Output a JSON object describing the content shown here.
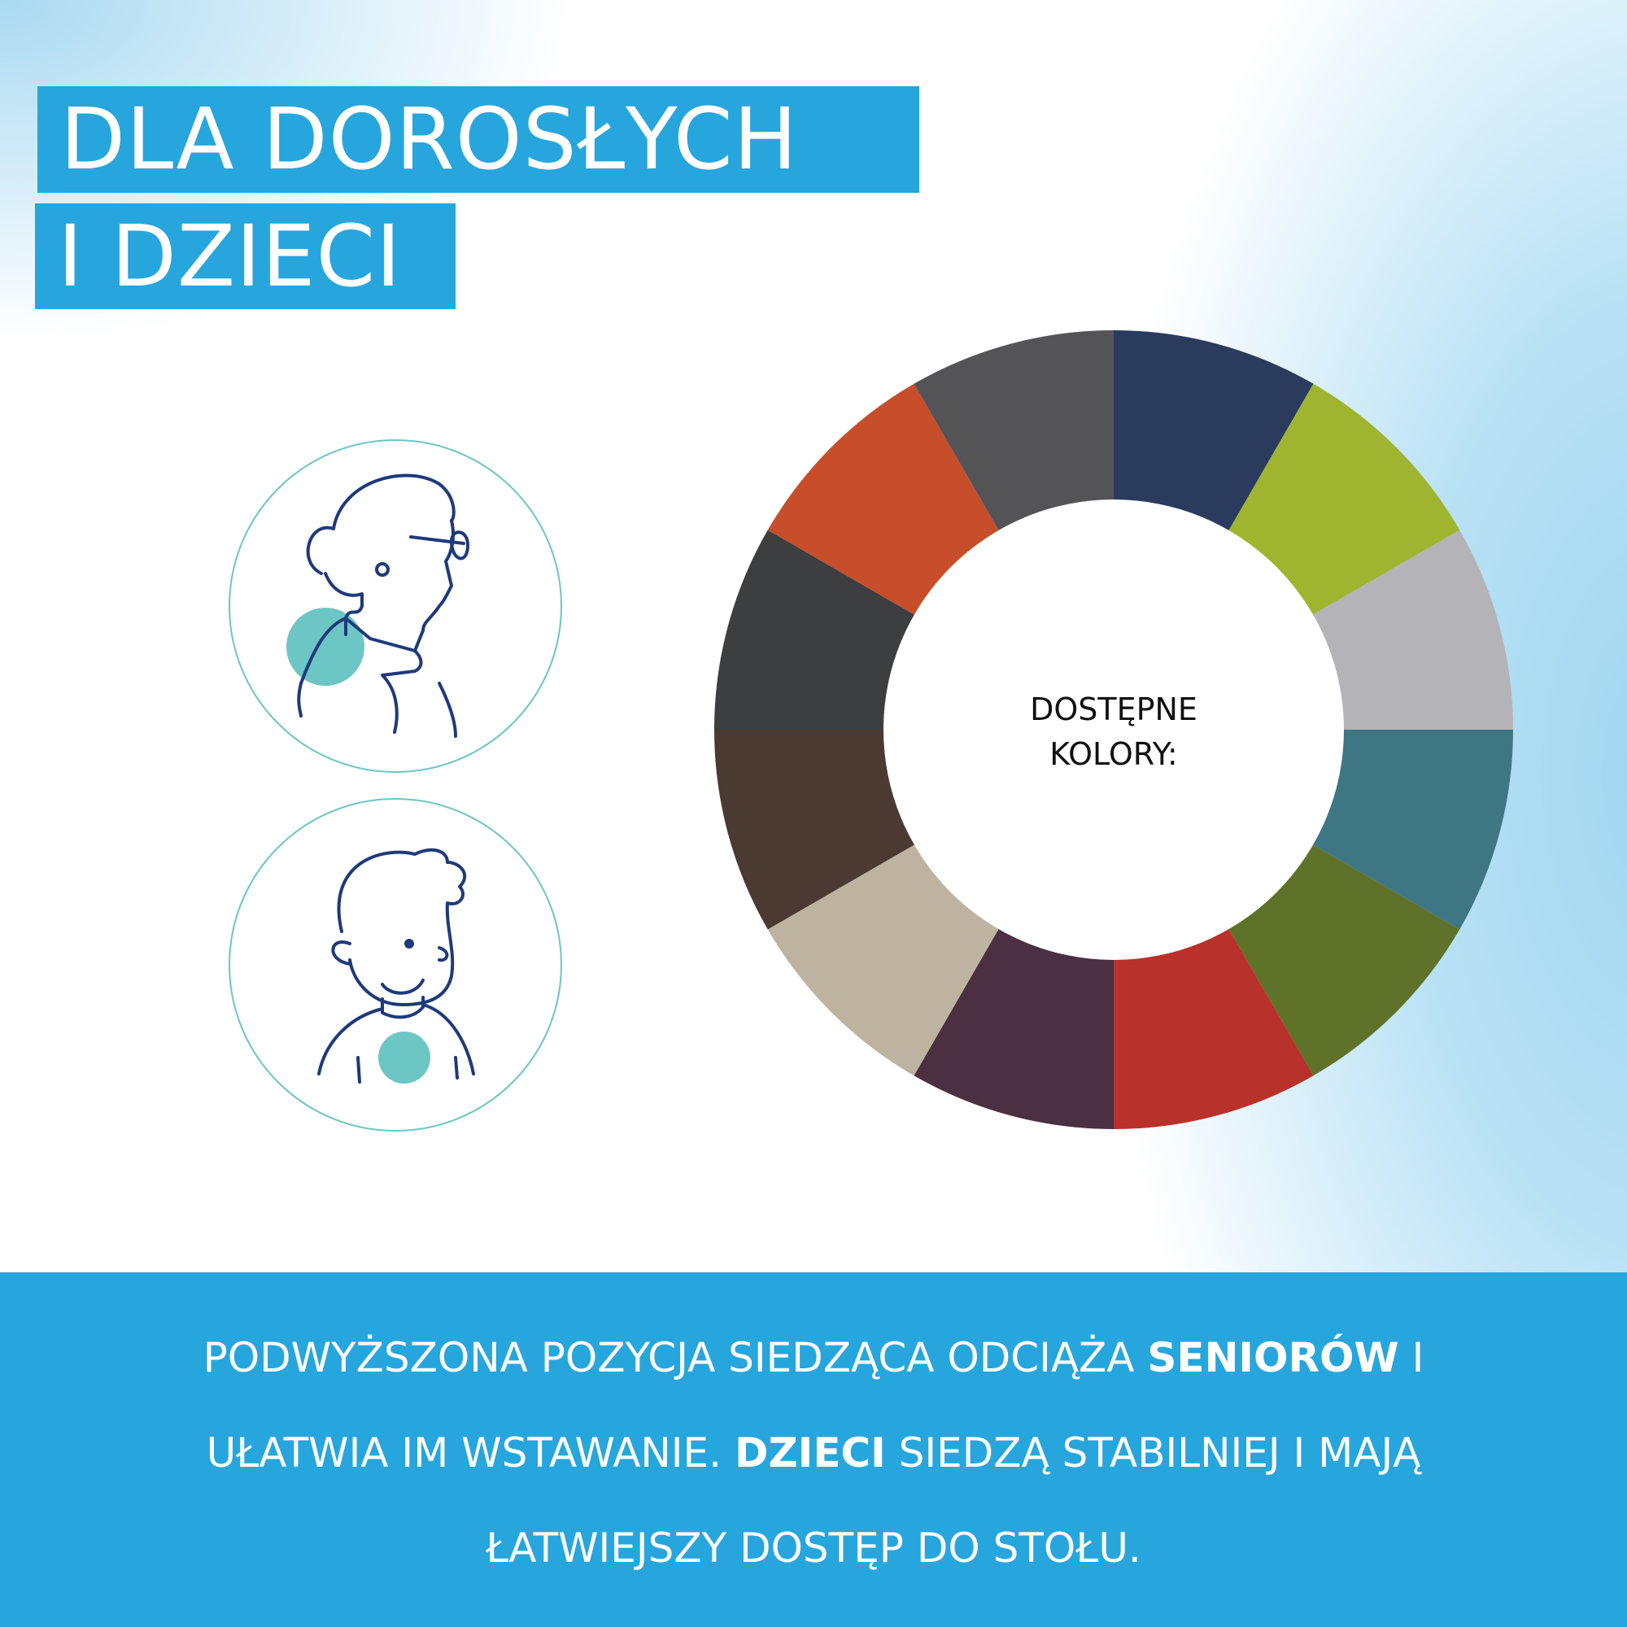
{
  "header": {
    "title_lines": [
      "DLA DOROSŁYCH",
      "I DZIECI"
    ]
  },
  "wheel": {
    "label_lines": [
      "DOSTĘPNE",
      "KOLORY:"
    ]
  },
  "footer": {
    "lines": [
      [
        "PODWYŻSZONA POZYCJA SIEDZĄCA ODCIĄŻA",
        "SENIORÓW",
        "I"
      ],
      [
        "UŁATWIA IM WSTAWANIE.",
        "DZIECI",
        "SIEDZĄ STABILNIEJ I MAJĄ"
      ],
      [
        "ŁATWIEJSZY DOSTĘP DO STOŁU."
      ]
    ]
  }
}
